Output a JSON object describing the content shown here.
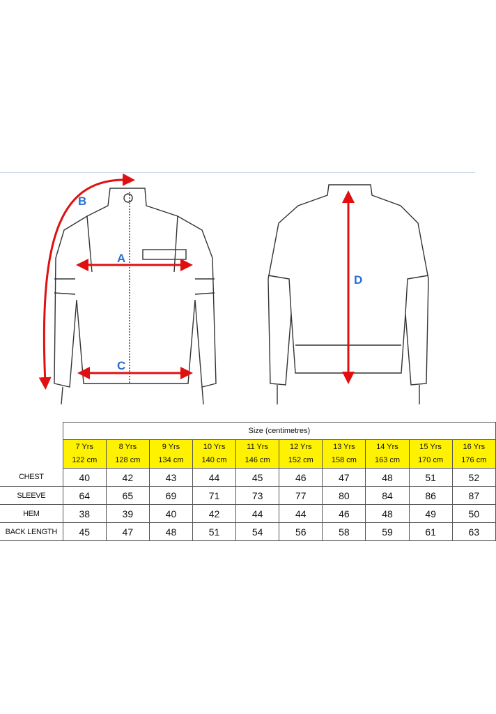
{
  "diagram": {
    "labels": [
      "A",
      "B",
      "C",
      "D"
    ],
    "arrow_color": "#e01010",
    "label_color": "#2a6fd0"
  },
  "table": {
    "title": "Size (centimetres)",
    "sizes": [
      {
        "age": "7 Yrs",
        "height": "122 cm"
      },
      {
        "age": "8  Yrs",
        "height": "128 cm"
      },
      {
        "age": "9 Yrs",
        "height": "134 cm"
      },
      {
        "age": "10 Yrs",
        "height": "140 cm"
      },
      {
        "age": "11 Yrs",
        "height": "146 cm"
      },
      {
        "age": "12 Yrs",
        "height": "152 cm"
      },
      {
        "age": "13 Yrs",
        "height": "158 cm"
      },
      {
        "age": "14 Yrs",
        "height": "163 cm"
      },
      {
        "age": "15 Yrs",
        "height": "170 cm"
      },
      {
        "age": "16 Yrs",
        "height": "176 cm"
      }
    ],
    "header_color": "#fff200",
    "rows": [
      {
        "label": "CHEST",
        "values": [
          "40",
          "42",
          "43",
          "44",
          "45",
          "46",
          "47",
          "48",
          "51",
          "52"
        ]
      },
      {
        "label": "SLEEVE",
        "values": [
          "64",
          "65",
          "69",
          "71",
          "73",
          "77",
          "80",
          "84",
          "86",
          "87"
        ]
      },
      {
        "label": "HEM",
        "values": [
          "38",
          "39",
          "40",
          "42",
          "44",
          "44",
          "46",
          "48",
          "49",
          "50"
        ]
      },
      {
        "label": "BACK LENGTH",
        "values": [
          "45",
          "47",
          "48",
          "51",
          "54",
          "56",
          "58",
          "59",
          "61",
          "63"
        ]
      }
    ]
  }
}
